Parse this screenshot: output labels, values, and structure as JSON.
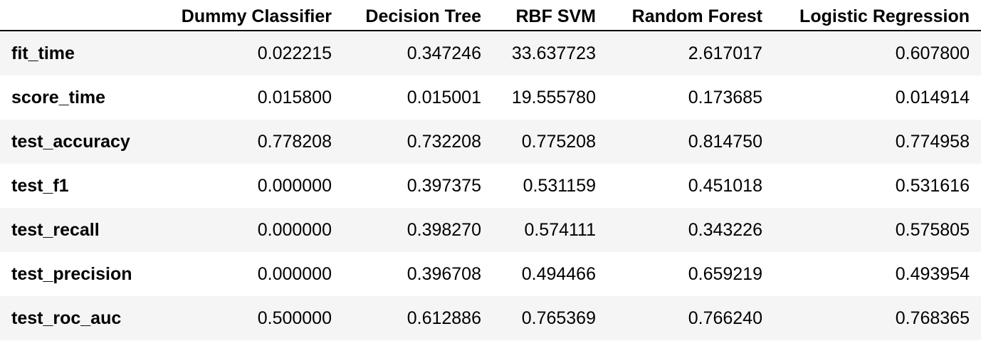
{
  "table": {
    "index_header": "",
    "columns": [
      "Dummy Classifier",
      "Decision Tree",
      "RBF SVM",
      "Random Forest",
      "Logistic Regression"
    ],
    "rows": [
      {
        "label": "fit_time",
        "values": [
          "0.022215",
          "0.347246",
          "33.637723",
          "2.617017",
          "0.607800"
        ]
      },
      {
        "label": "score_time",
        "values": [
          "0.015800",
          "0.015001",
          "19.555780",
          "0.173685",
          "0.014914"
        ]
      },
      {
        "label": "test_accuracy",
        "values": [
          "0.778208",
          "0.732208",
          "0.775208",
          "0.814750",
          "0.774958"
        ]
      },
      {
        "label": "test_f1",
        "values": [
          "0.000000",
          "0.397375",
          "0.531159",
          "0.451018",
          "0.531616"
        ]
      },
      {
        "label": "test_recall",
        "values": [
          "0.000000",
          "0.398270",
          "0.574111",
          "0.343226",
          "0.575805"
        ]
      },
      {
        "label": "test_precision",
        "values": [
          "0.000000",
          "0.396708",
          "0.494466",
          "0.659219",
          "0.493954"
        ]
      },
      {
        "label": "test_roc_auc",
        "values": [
          "0.500000",
          "0.612886",
          "0.765369",
          "0.766240",
          "0.768365"
        ]
      }
    ]
  }
}
